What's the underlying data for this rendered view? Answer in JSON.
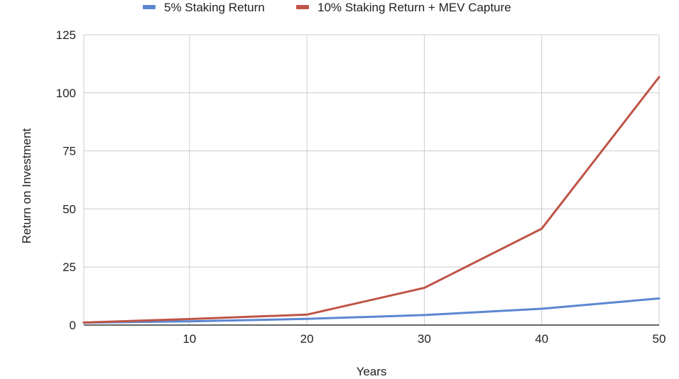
{
  "chart_data": {
    "type": "line",
    "title": "",
    "xlabel": "Years",
    "ylabel": "Return on Investment",
    "xlim": [
      1,
      50
    ],
    "ylim": [
      0,
      125
    ],
    "x_ticks": [
      10,
      20,
      30,
      40,
      50
    ],
    "y_ticks": [
      0,
      25,
      50,
      75,
      100,
      125
    ],
    "grid": true,
    "legend_position": "top",
    "series": [
      {
        "name": "5% Staking Return",
        "color": "#5b87d2",
        "points": [
          [
            1,
            1.05
          ],
          [
            10,
            1.63
          ],
          [
            20,
            2.65
          ],
          [
            30,
            4.32
          ],
          [
            40,
            7.04
          ],
          [
            50,
            11.47
          ]
        ]
      },
      {
        "name": "10% Staking Return + MEV Capture",
        "color": "#bf5447",
        "points": [
          [
            1,
            1.1
          ],
          [
            10,
            2.59
          ],
          [
            20,
            4.5
          ],
          [
            30,
            16.0
          ],
          [
            40,
            41.5
          ],
          [
            50,
            106.8
          ]
        ]
      }
    ]
  }
}
